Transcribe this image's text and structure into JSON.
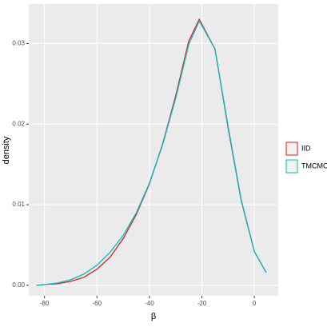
{
  "chart_data": {
    "type": "line",
    "x_label": "β",
    "y_label": "density",
    "x": [
      -83,
      -80,
      -75,
      -70,
      -65,
      -60,
      -55,
      -50,
      -45,
      -40,
      -35,
      -30,
      -25,
      -21,
      -15,
      -10,
      -5,
      0,
      4.5
    ],
    "series": [
      {
        "name": "IID",
        "color": "#e41a1c",
        "values": [
          0,
          0.0001,
          0.0002,
          0.0005,
          0.001,
          0.002,
          0.0035,
          0.0058,
          0.0088,
          0.0126,
          0.0175,
          0.0235,
          0.0303,
          0.033,
          0.0293,
          0.0195,
          0.0105,
          0.0042,
          0.0016
        ]
      },
      {
        "name": "TMCMC",
        "color": "#00bfc4",
        "values": [
          0,
          0.0001,
          0.0003,
          0.0007,
          0.0014,
          0.0025,
          0.0041,
          0.0062,
          0.009,
          0.0127,
          0.0174,
          0.0232,
          0.0299,
          0.0328,
          0.0293,
          0.0197,
          0.0106,
          0.0042,
          0.0016
        ]
      }
    ],
    "xlim": [
      -86,
      9.1
    ],
    "ylim": [
      -0.0013,
      0.0349
    ],
    "xticks": [
      -80,
      -60,
      -40,
      -20,
      0
    ],
    "yticks": [
      {
        "value": 0,
        "label": "0.00"
      },
      {
        "value": 0.01,
        "label": "0.01"
      },
      {
        "value": 0.02,
        "label": "0.02"
      },
      {
        "value": 0.03,
        "label": "0.03"
      }
    ],
    "grid": true,
    "legend": "right"
  }
}
